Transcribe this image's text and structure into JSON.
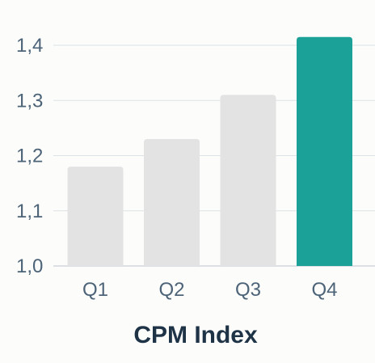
{
  "chart_data": {
    "type": "bar",
    "title": "CPM Index",
    "xlabel": "",
    "ylabel": "",
    "categories": [
      "Q1",
      "Q2",
      "Q3",
      "Q4"
    ],
    "values": [
      1.18,
      1.23,
      1.31,
      1.415
    ],
    "ylim": [
      1.0,
      1.4
    ],
    "yticks": [
      "1,0",
      "1,1",
      "1,2",
      "1,3",
      "1,4"
    ],
    "ytick_values": [
      1.0,
      1.1,
      1.2,
      1.3,
      1.4
    ],
    "grid": true,
    "legend": "none",
    "colors": {
      "default_bar": "#e3e3e3",
      "highlight_bar": "#1ba197",
      "gridline": "#dde2e6",
      "tick_text": "#4d6478",
      "title_text": "#1f3347"
    },
    "highlight_index": 3
  }
}
